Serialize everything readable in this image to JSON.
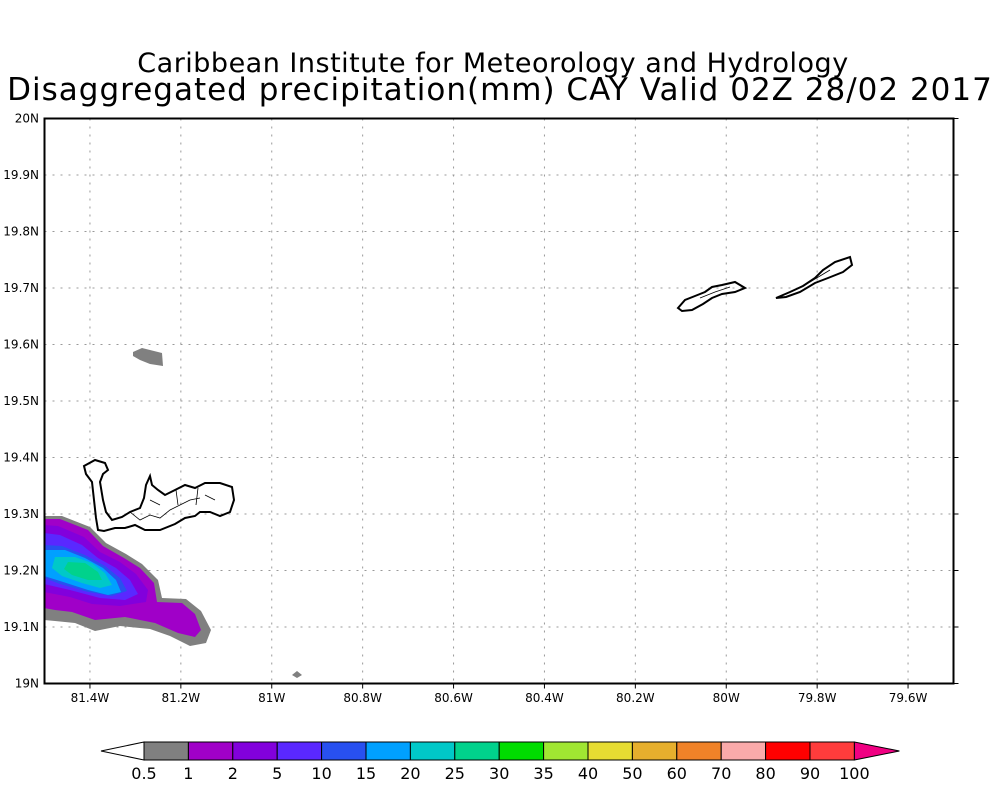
{
  "title": {
    "line1": "Caribbean Institute for Meteorology and Hydrology",
    "line2": "Disaggregated precipitation(mm) CAY Valid 02Z 28/02 2017"
  },
  "map": {
    "lon_range": [
      -81.5,
      -79.5
    ],
    "lat_range": [
      19.0,
      20.0
    ],
    "x_ticks": [
      "81.4W",
      "81.2W",
      "81W",
      "80.8W",
      "80.6W",
      "80.4W",
      "80.2W",
      "80W",
      "79.8W",
      "79.6W"
    ],
    "x_tick_values": [
      -81.4,
      -81.2,
      -81.0,
      -80.8,
      -80.6,
      -80.4,
      -80.2,
      -80.0,
      -79.8,
      -79.6
    ],
    "y_ticks": [
      "19N",
      "19.1N",
      "19.2N",
      "19.3N",
      "19.4N",
      "19.5N",
      "19.6N",
      "19.7N",
      "19.8N",
      "19.9N",
      "20N"
    ],
    "y_tick_values": [
      19.0,
      19.1,
      19.2,
      19.3,
      19.4,
      19.5,
      19.6,
      19.7,
      19.8,
      19.9,
      20.0
    ],
    "grid": true
  },
  "colorbar": {
    "labels": [
      "0.5",
      "1",
      "2",
      "5",
      "10",
      "15",
      "20",
      "25",
      "30",
      "35",
      "40",
      "50",
      "60",
      "70",
      "80",
      "90",
      "100"
    ],
    "colors": [
      "#808080",
      "#a000c8",
      "#8200dc",
      "#5a28ff",
      "#2850f0",
      "#00a0ff",
      "#00c8c8",
      "#00d28c",
      "#00dc00",
      "#a0e632",
      "#e6dc32",
      "#e6af2d",
      "#f08228",
      "#faaaaa",
      "#ff0000",
      "#ff3c3c",
      "#f00082"
    ],
    "low_color": "#ffffff"
  }
}
